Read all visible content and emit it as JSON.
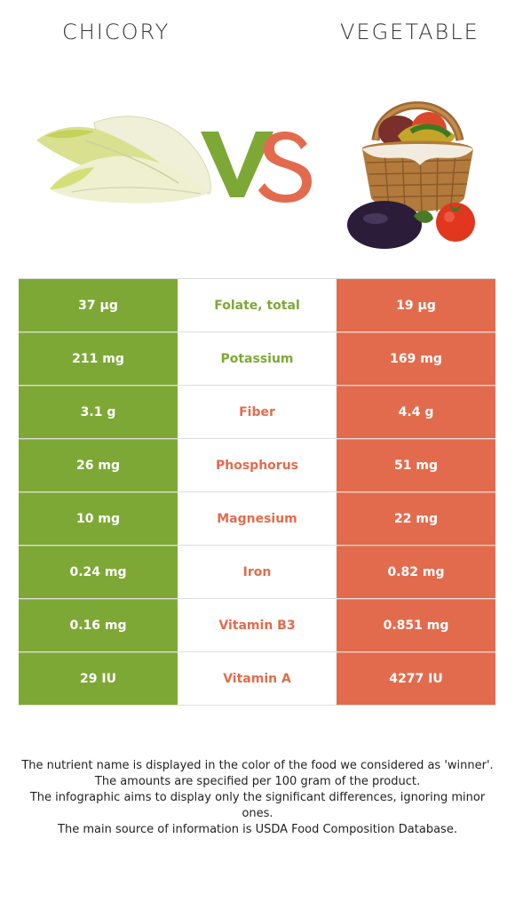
{
  "header": {
    "left_food": "CHICORY",
    "right_food": "VEGETABLE",
    "vs_text": "VS"
  },
  "colors": {
    "left": "#7ea836",
    "right": "#e36b4d",
    "neutral": "#ffffff"
  },
  "rows": [
    {
      "nutrient": "Folate, total",
      "left": "37 µg",
      "right": "19 µg",
      "winner": "left"
    },
    {
      "nutrient": "Potassium",
      "left": "211 mg",
      "right": "169 mg",
      "winner": "left"
    },
    {
      "nutrient": "Fiber",
      "left": "3.1 g",
      "right": "4.4 g",
      "winner": "right"
    },
    {
      "nutrient": "Phosphorus",
      "left": "26 mg",
      "right": "51 mg",
      "winner": "right"
    },
    {
      "nutrient": "Magnesium",
      "left": "10 mg",
      "right": "22 mg",
      "winner": "right"
    },
    {
      "nutrient": "Iron",
      "left": "0.24 mg",
      "right": "0.82 mg",
      "winner": "right"
    },
    {
      "nutrient": "Vitamin B3",
      "left": "0.16 mg",
      "right": "0.851 mg",
      "winner": "right"
    },
    {
      "nutrient": "Vitamin A",
      "left": "29 IU",
      "right": "4277 IU",
      "winner": "right"
    }
  ],
  "footnotes": [
    "The nutrient name is displayed in the color of the food we considered as 'winner'.",
    "The amounts are specified per 100 gram of the product.",
    "The infographic aims to display only the significant differences, ignoring minor ones.",
    "The main source of information is USDA Food Composition Database."
  ]
}
